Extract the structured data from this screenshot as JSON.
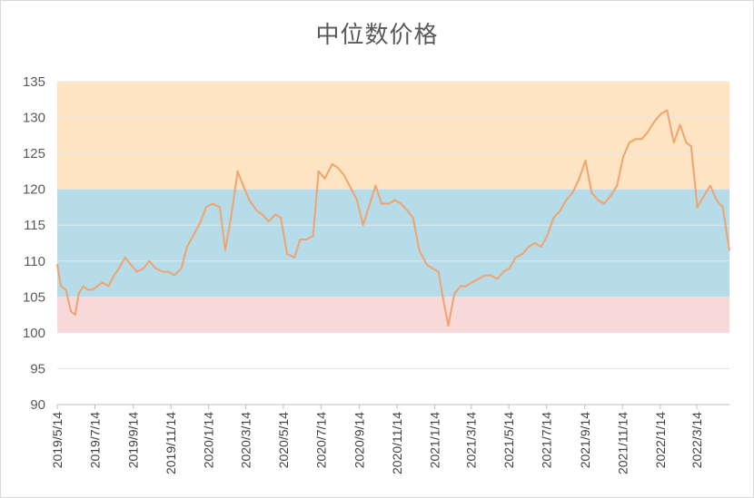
{
  "chart_data": {
    "type": "line",
    "title": "中位数价格",
    "xlabel": "",
    "ylabel": "",
    "ylim": [
      90,
      135
    ],
    "y_ticks": [
      90,
      95,
      100,
      105,
      110,
      115,
      120,
      125,
      130,
      135
    ],
    "x_tick_labels": [
      "2019/5/14",
      "2019/7/14",
      "2019/9/14",
      "2019/11/14",
      "2020/1/14",
      "2020/3/14",
      "2020/5/14",
      "2020/7/14",
      "2020/9/14",
      "2020/11/14",
      "2021/1/14",
      "2021/3/14",
      "2021/5/14",
      "2021/7/14",
      "2021/9/14",
      "2021/11/14",
      "2022/1/14",
      "2022/3/14"
    ],
    "x_range": [
      "2019-05-14",
      "2022-05-06"
    ],
    "grid": true,
    "legend": "none",
    "bands": [
      {
        "from": 120,
        "to": 135,
        "color": "#fde5c3"
      },
      {
        "from": 105,
        "to": 120,
        "color": "#b6dbe9"
      },
      {
        "from": 100,
        "to": 105,
        "color": "#f8d9d9"
      }
    ],
    "line_color": "#f0a36f",
    "series": [
      {
        "x": [
          "2019-05-14",
          "2019-05-20",
          "2019-05-28",
          "2019-06-05",
          "2019-06-12",
          "2019-06-18",
          "2019-06-25",
          "2019-07-02",
          "2019-07-10",
          "2019-07-18",
          "2019-07-26",
          "2019-08-05",
          "2019-08-14",
          "2019-08-22",
          "2019-09-01",
          "2019-09-10",
          "2019-09-20",
          "2019-10-01",
          "2019-10-10",
          "2019-10-20",
          "2019-11-01",
          "2019-11-10",
          "2019-11-20",
          "2019-12-01",
          "2019-12-10",
          "2019-12-20",
          "2020-01-01",
          "2020-01-10",
          "2020-01-20",
          "2020-02-01",
          "2020-02-10",
          "2020-02-20",
          "2020-03-01",
          "2020-03-10",
          "2020-03-20",
          "2020-04-01",
          "2020-04-10",
          "2020-04-20",
          "2020-05-01",
          "2020-05-10",
          "2020-05-20",
          "2020-06-01",
          "2020-06-10",
          "2020-06-20",
          "2020-07-01",
          "2020-07-10",
          "2020-07-20",
          "2020-08-01",
          "2020-08-10",
          "2020-08-20",
          "2020-09-01",
          "2020-09-10",
          "2020-09-20",
          "2020-10-01",
          "2020-10-10",
          "2020-10-20",
          "2020-11-01",
          "2020-11-10",
          "2020-11-20",
          "2020-12-01",
          "2020-12-10",
          "2020-12-20",
          "2021-01-01",
          "2021-01-10",
          "2021-01-20",
          "2021-01-28",
          "2021-02-05",
          "2021-02-15",
          "2021-02-25",
          "2021-03-05",
          "2021-03-15",
          "2021-03-25",
          "2021-04-05",
          "2021-04-15",
          "2021-04-25",
          "2021-05-05",
          "2021-05-15",
          "2021-05-25",
          "2021-06-05",
          "2021-06-15",
          "2021-06-25",
          "2021-07-05",
          "2021-07-15",
          "2021-07-25",
          "2021-08-05",
          "2021-08-15",
          "2021-08-25",
          "2021-09-05",
          "2021-09-15",
          "2021-09-25",
          "2021-10-05",
          "2021-10-15",
          "2021-10-25",
          "2021-11-05",
          "2021-11-15",
          "2021-11-25",
          "2021-12-05",
          "2021-12-15",
          "2021-12-25",
          "2022-01-05",
          "2022-01-15",
          "2022-01-25",
          "2022-02-05",
          "2022-02-15",
          "2022-02-25",
          "2022-03-05",
          "2022-03-15",
          "2022-03-25",
          "2022-04-05",
          "2022-04-15",
          "2022-04-25",
          "2022-05-06"
        ],
        "y": [
          109.5,
          106.5,
          106.0,
          103.0,
          102.5,
          105.5,
          106.5,
          106.0,
          106.0,
          106.5,
          107.0,
          106.5,
          108.0,
          109.0,
          110.5,
          109.5,
          108.5,
          109.0,
          110.0,
          109.0,
          108.5,
          108.5,
          108.0,
          109.0,
          112.0,
          113.5,
          115.5,
          117.5,
          118.0,
          117.5,
          111.5,
          116.5,
          122.5,
          120.5,
          118.5,
          117.0,
          116.5,
          115.5,
          116.5,
          116.0,
          111.0,
          110.5,
          113.0,
          113.0,
          113.5,
          122.5,
          121.5,
          123.5,
          123.0,
          122.0,
          120.0,
          118.5,
          115.0,
          118.0,
          120.5,
          118.0,
          118.0,
          118.5,
          118.0,
          117.0,
          116.0,
          111.5,
          109.5,
          109.0,
          108.5,
          104.5,
          101.0,
          105.5,
          106.5,
          106.5,
          107.0,
          107.5,
          108.0,
          108.0,
          107.5,
          108.5,
          109.0,
          110.5,
          111.0,
          112.0,
          112.5,
          112.0,
          113.5,
          116.0,
          117.0,
          118.5,
          119.5,
          121.5,
          124.0,
          119.5,
          118.5,
          118.0,
          119.0,
          120.5,
          124.5,
          126.5,
          127.0,
          127.0,
          128.0,
          129.5,
          130.5,
          131.0,
          126.5,
          129.0,
          126.5,
          126.0,
          117.5,
          119.0,
          120.5,
          118.5,
          117.5,
          111.5
        ]
      }
    ]
  }
}
